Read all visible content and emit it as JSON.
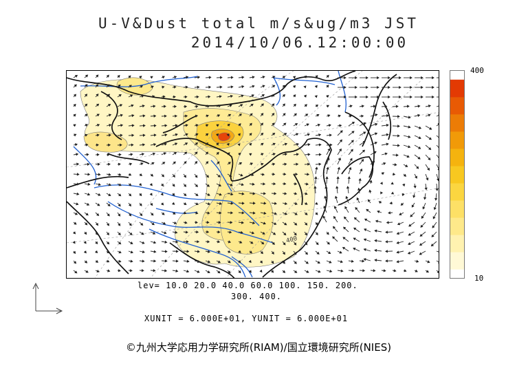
{
  "header": {
    "title_line1": "U-V&Dust total m/s&ug/m3 JST",
    "title_line2": "2014/10/06.12:00:00"
  },
  "legend": {
    "max_label": "400",
    "min_label": "10",
    "colors": [
      "#fff9d6",
      "#fff2b0",
      "#fee98a",
      "#fde066",
      "#fbd640",
      "#f8c820",
      "#f5b30e",
      "#f19a08",
      "#ec7c06",
      "#e85a04",
      "#e33a03"
    ]
  },
  "contour_levels": {
    "line1": "lev= 10.0 20.0 40.0 60.0 100. 150. 200.",
    "line2": "300. 400."
  },
  "units": {
    "text": "XUNIT = 6.000E+01, YUNIT = 6.000E+01"
  },
  "credit": {
    "text": "©九州大学応用力学研究所(RIAM)/国立環境研究所(NIES)"
  },
  "map": {
    "contour_annotation": "400",
    "colors": {
      "coast": "#111111",
      "river": "#1f5fd0",
      "vector": "#222222",
      "grid": "#888888"
    }
  }
}
